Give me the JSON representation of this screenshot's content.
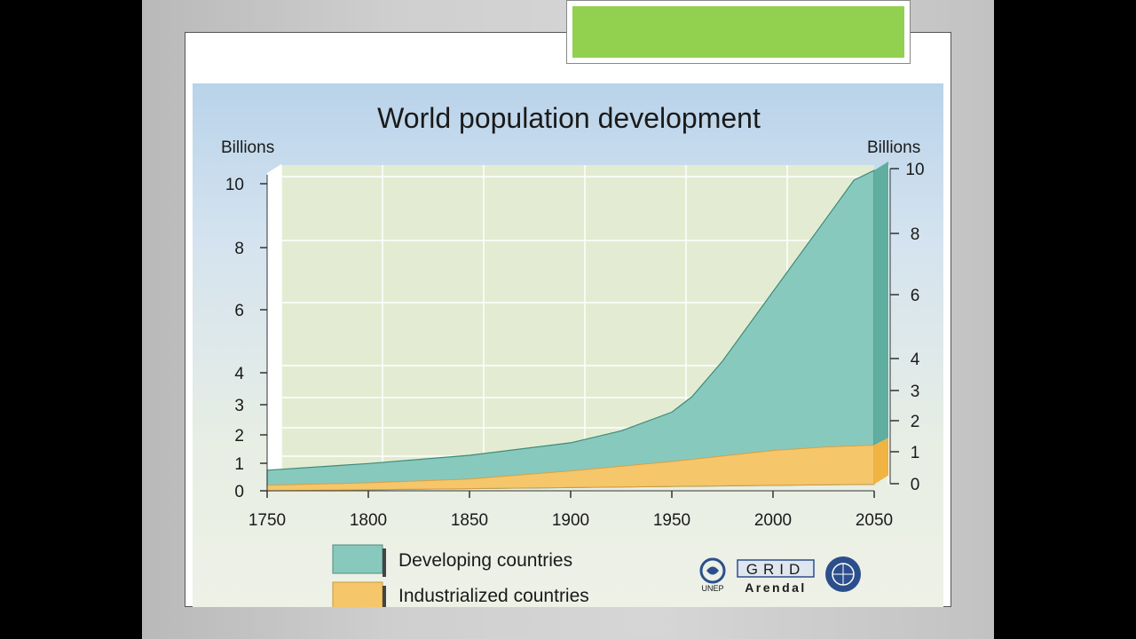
{
  "chart_data": {
    "type": "area",
    "title": "World population development",
    "ylabel_left": "Billions",
    "ylabel_right": "Billions",
    "x": [
      1750,
      1800,
      1850,
      1900,
      1950,
      2000,
      2050
    ],
    "x_ticks": [
      "1750",
      "1800",
      "1850",
      "1900",
      "1950",
      "2000",
      "2050"
    ],
    "y_ticks": [
      "0",
      "1",
      "2",
      "3",
      "4",
      "6",
      "8",
      "10"
    ],
    "y_tick_values": [
      0,
      1,
      2,
      3,
      4,
      6,
      8,
      10
    ],
    "xlim": [
      1750,
      2050
    ],
    "ylim": [
      0,
      10
    ],
    "stacked": true,
    "series": [
      {
        "name": "Industrialized countries",
        "color": "#f5c66a",
        "points": [
          [
            1750,
            0.2
          ],
          [
            1800,
            0.25
          ],
          [
            1850,
            0.35
          ],
          [
            1900,
            0.6
          ],
          [
            1950,
            0.9
          ],
          [
            2000,
            1.25
          ],
          [
            2025,
            1.35
          ],
          [
            2050,
            1.4
          ]
        ]
      },
      {
        "name": "Developing countries",
        "color": "#88c9bd",
        "total_points": [
          [
            1750,
            0.75
          ],
          [
            1800,
            0.95
          ],
          [
            1850,
            1.2
          ],
          [
            1900,
            1.6
          ],
          [
            1925,
            2.0
          ],
          [
            1950,
            2.6
          ],
          [
            1960,
            3.1
          ],
          [
            1975,
            4.2
          ],
          [
            2000,
            6.4
          ],
          [
            2025,
            8.6
          ],
          [
            2040,
            9.9
          ],
          [
            2050,
            10.2
          ]
        ]
      }
    ],
    "legend_position": "bottom-left",
    "grid": true
  },
  "legend": {
    "developing": "Developing countries",
    "industrialized": "Industrialized countries"
  },
  "logos": {
    "unep": "UNEP",
    "grid": "GRID",
    "arendal": "Arendal"
  }
}
